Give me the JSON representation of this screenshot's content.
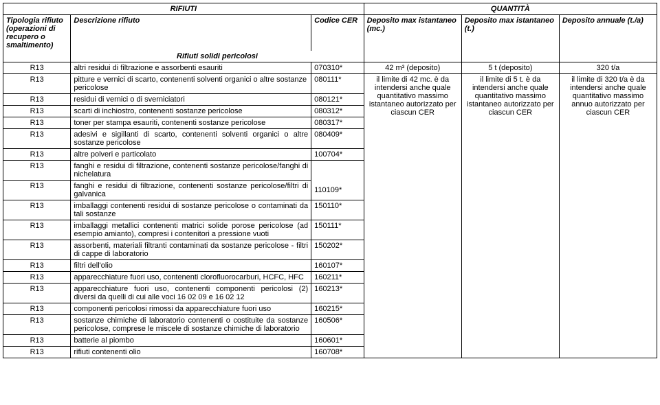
{
  "headers": {
    "rifiuti": "RIFIUTI",
    "quantita": "QUANTITÀ",
    "tipologia": "Tipologia rifiuto (operazioni di recupero o smaltimento)",
    "descrizione": "Descrizione rifiuto",
    "codice": "Codice CER",
    "dep_inst_mc": "Deposito max istantaneo (mc.)",
    "dep_inst_t": "Deposito max istantaneo (t.)",
    "dep_ann": "Deposito annuale (t./a)",
    "section": "Rifiuti solidi pericolosi"
  },
  "firstrow": {
    "tip": "R13",
    "desc": "altri residui di filtrazione e assorbenti esauriti",
    "cer": "070310*",
    "mc": "42 m³ (deposito)",
    "t": "5 t (deposito)",
    "a": "320 t/a"
  },
  "merged": {
    "mc": "il limite di 42 mc. è da intendersi anche quale quantitativo massimo istantaneo autorizzato per ciascun CER",
    "t": "il limite di 5 t. è da intendersi anche quale quantitativo massimo istantaneo autorizzato per ciascun CER",
    "a": "il limite di 320 t/a è da intendersi anche quale quantitativo massimo annuo autorizzato per ciascun CER"
  },
  "rows": [
    {
      "tip": "R13",
      "desc": "pitture e vernici di scarto, contenenti solventi organici o altre sostanze pericolose",
      "cer": "080111*"
    },
    {
      "tip": "R13",
      "desc": "residui di vernici o di sverniciatori",
      "cer": "080121*"
    },
    {
      "tip": "R13",
      "desc": "scarti di inchiostro, contenenti sostanze pericolose",
      "cer": "080312*"
    },
    {
      "tip": "R13",
      "desc": "toner per stampa esauriti, contenenti sostanze pericolose",
      "cer": "080317*",
      "justify": true
    },
    {
      "tip": "R13",
      "desc": "adesivi e sigillanti di scarto, contenenti solventi organici o altre sostanze pericolose",
      "cer": "080409*",
      "justify": true
    },
    {
      "tip": "R13",
      "desc": "altre polveri e particolato",
      "cer": "100704*"
    },
    {
      "tip": "R13",
      "desc": "fanghi e residui di filtrazione, contenenti sostanze pericolose/fanghi di nichelatura",
      "cer": "",
      "justify": true,
      "cerNoBottom": true
    },
    {
      "tip": "R13",
      "desc": "fanghi e residui di filtrazione, contenenti sostanze pericolose/filtri di galvanica",
      "cer": "110109*",
      "justify": true,
      "cerNoTop": true
    },
    {
      "tip": "R13",
      "desc": "imballaggi contenenti residui di sostanze pericolose o contaminati da tali sostanze",
      "cer": "150110*",
      "justify": true
    },
    {
      "tip": "R13",
      "desc": "imballaggi metallici contenenti matrici solide porose pericolose (ad esempio amianto), compresi i contenitori a pressione vuoti",
      "cer": "150111*",
      "justify": true
    },
    {
      "tip": "R13",
      "desc": "assorbenti, materiali filtranti contaminati da sostanze pericolose - filtri di cappe di laboratorio",
      "cer": "150202*",
      "justify": true
    },
    {
      "tip": "R13",
      "desc": "filtri dell'olio",
      "cer": "160107*"
    },
    {
      "tip": "R13",
      "desc": "apparecchiature fuori uso, contenenti clorofluorocarburi, HCFC, HFC",
      "cer": "160211*",
      "justify": true
    },
    {
      "tip": "R13",
      "desc": "apparecchiature fuori uso, contenenti componenti pericolosi (2) diversi da quelli di cui alle voci 16 02 09 e 16 02 12",
      "cer": "160213*",
      "justify": true
    },
    {
      "tip": "R13",
      "desc": "componenti pericolosi rimossi da apparecchiature fuori uso",
      "cer": "160215*",
      "justify": true
    },
    {
      "tip": "R13",
      "desc": "sostanze chimiche di laboratorio contenenti o costituite da sostanze pericolose, comprese le miscele di sostanze chimiche di laboratorio",
      "cer": "160506*",
      "justify": true
    },
    {
      "tip": "R13",
      "desc": "batterie al piombo",
      "cer": "160601*"
    },
    {
      "tip": "R13",
      "desc": "rifiuti contenenti olio",
      "cer": "160708*"
    }
  ]
}
